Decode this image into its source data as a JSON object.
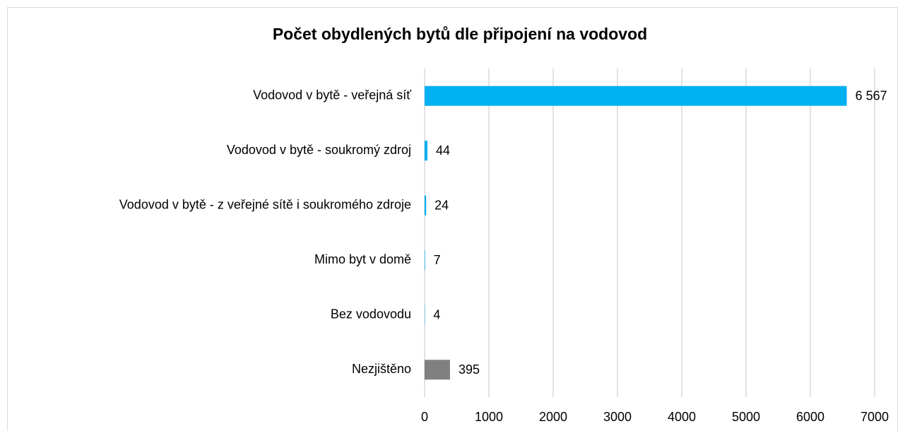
{
  "chart_data": {
    "type": "barh",
    "title": "Počet obydlených bytů dle připojení na vodovod",
    "categories": [
      "Vodovod v bytě - veřejná síť",
      "Vodovod v bytě - soukromý zdroj",
      "Vodovod v bytě - z veřejné sítě i soukromého zdroje",
      "Mimo byt v domě",
      "Bez vodovodu",
      "Nezjištěno"
    ],
    "values": [
      6567,
      44,
      24,
      7,
      4,
      395
    ],
    "value_labels": [
      "6 567",
      "44",
      "24",
      "7",
      "4",
      "395"
    ],
    "colors": [
      "#00b0f0",
      "#00b0f0",
      "#00b0f0",
      "#00b0f0",
      "#00b0f0",
      "#808080"
    ],
    "xlim": [
      0,
      7000
    ],
    "xticks": [
      0,
      1000,
      2000,
      3000,
      4000,
      5000,
      6000,
      7000
    ],
    "grid": true
  }
}
